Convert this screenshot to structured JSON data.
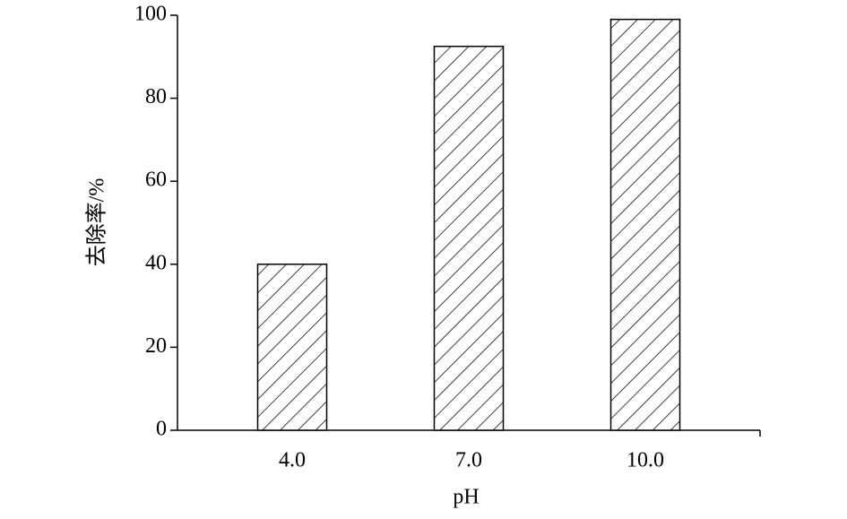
{
  "chart_data": {
    "type": "bar",
    "x_label": "pH",
    "y_label": "去除率/%",
    "categories": [
      "4.0",
      "7.0",
      "10.0"
    ],
    "values": [
      40,
      92.5,
      99
    ],
    "color": "#000000",
    "ylim": [
      0,
      100
    ],
    "yticks": [
      0,
      20,
      40,
      60,
      80,
      100
    ],
    "grid": false
  }
}
